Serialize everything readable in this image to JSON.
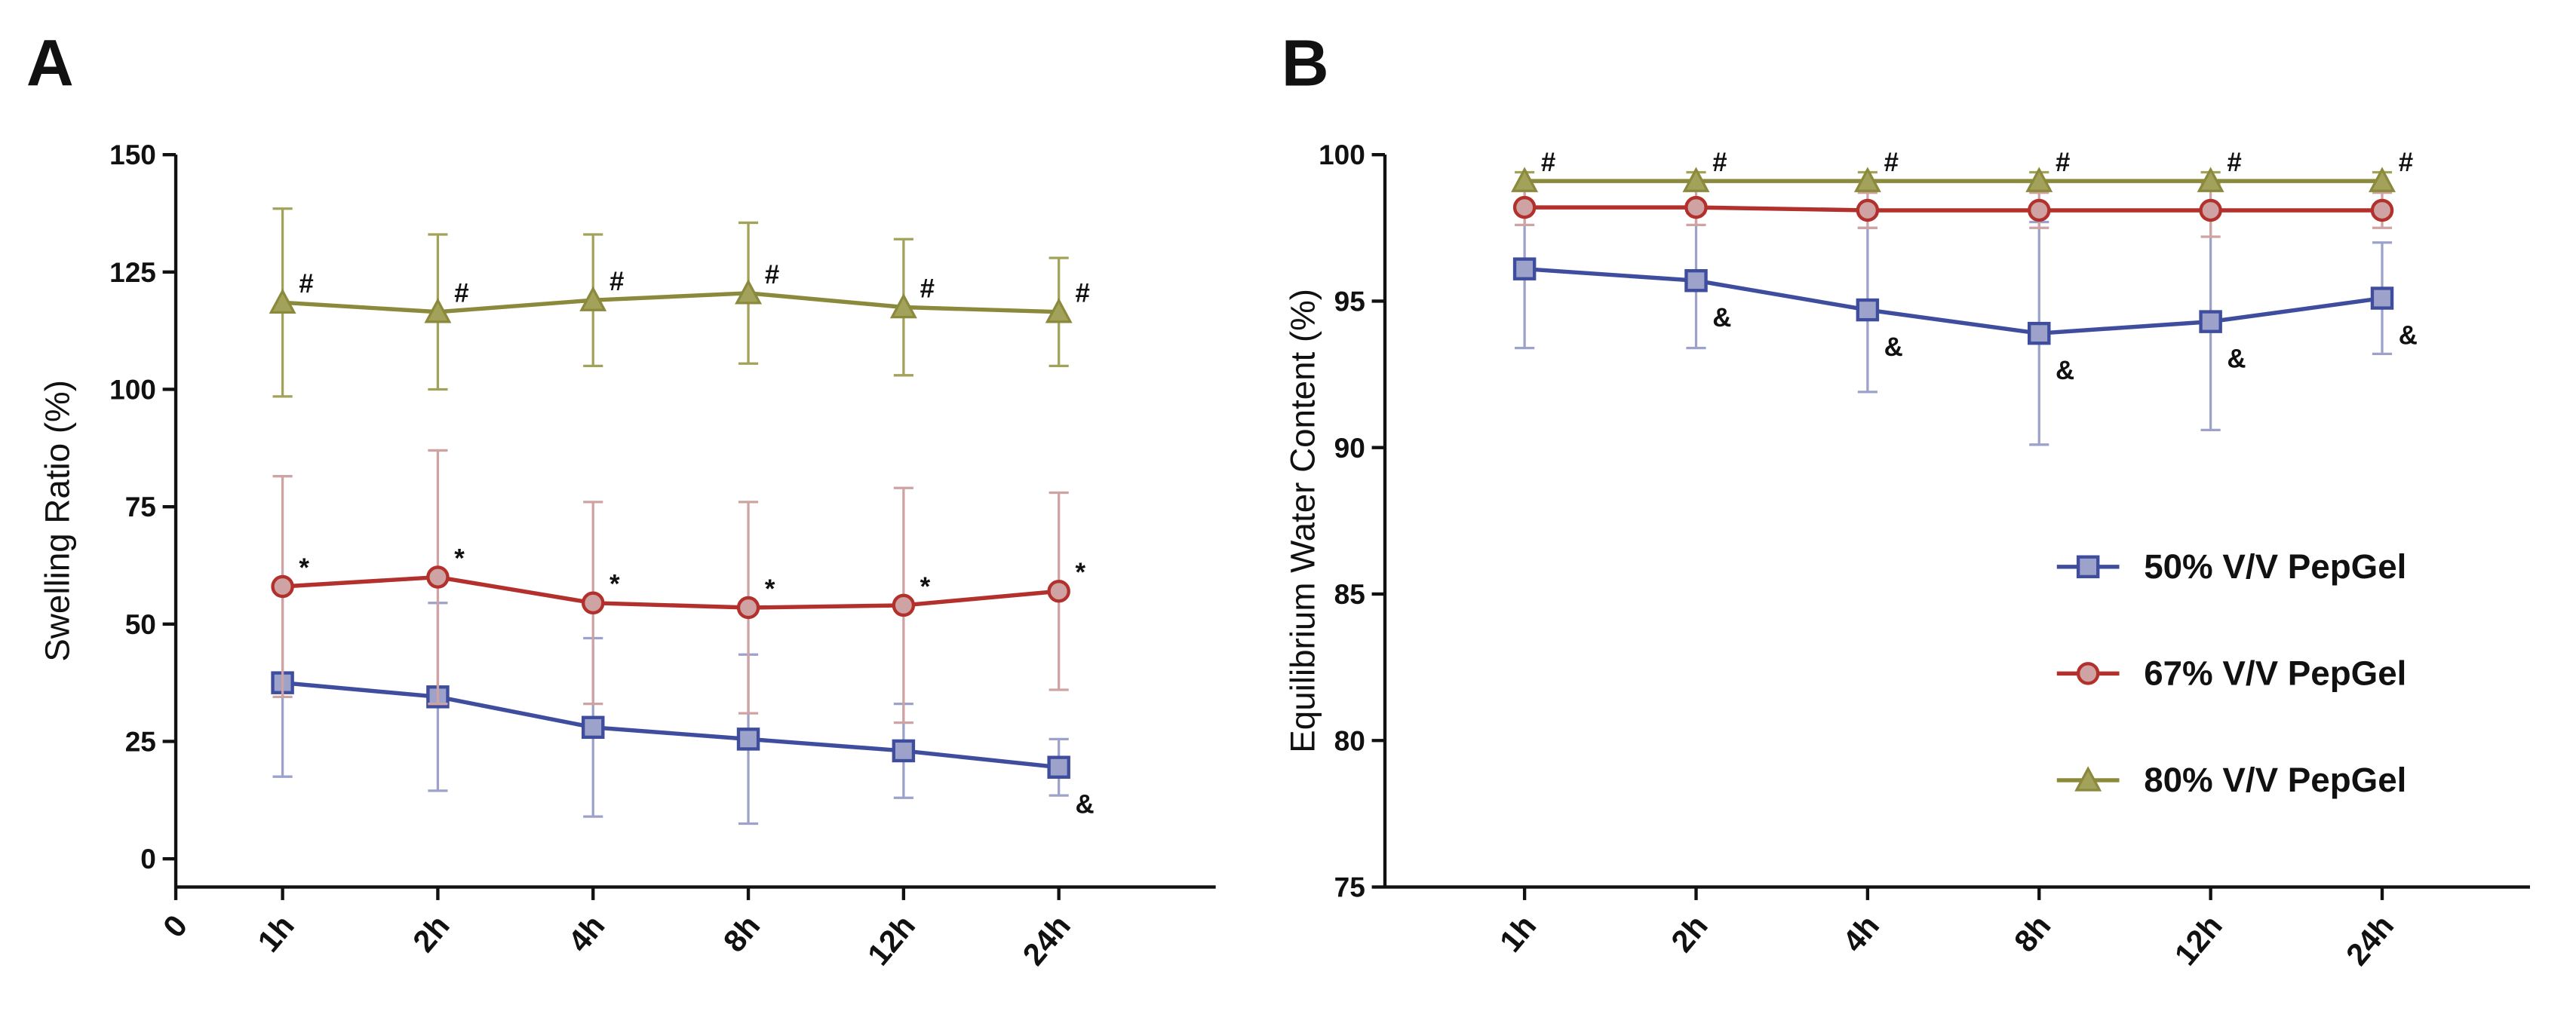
{
  "chart_data": [
    {
      "label": "A",
      "type": "line",
      "ylabel": "Swelling  Ratio (%)",
      "categories": [
        "0",
        "1h",
        "2h",
        "4h",
        "8h",
        "12h",
        "24h"
      ],
      "ylim": [
        -6,
        150
      ],
      "yticks": [
        0,
        25,
        50,
        75,
        100,
        125,
        150
      ],
      "series": [
        {
          "color": "#3f4d9e",
          "marker": "square",
          "values": [
            null,
            37.5,
            34.5,
            28,
            25.5,
            23,
            19.5
          ],
          "errors": [
            null,
            20,
            20,
            19,
            18,
            10,
            6
          ],
          "annotations": [
            null,
            null,
            null,
            null,
            null,
            null,
            "&"
          ]
        },
        {
          "color": "#b3312c",
          "marker": "circle",
          "values": [
            null,
            58,
            60,
            54.5,
            53.5,
            54,
            57
          ],
          "errors": [
            null,
            23.5,
            27,
            21.5,
            22.5,
            25,
            21
          ],
          "annotations": [
            null,
            "*",
            "*",
            "*",
            "*",
            "*",
            "*"
          ]
        },
        {
          "color": "#8b8a3c",
          "marker": "triangle",
          "values": [
            null,
            118.5,
            116.5,
            119,
            120.5,
            117.5,
            116.5
          ],
          "errors": [
            null,
            20,
            16.5,
            14,
            15,
            14.5,
            11.5
          ],
          "annotations": [
            null,
            "#",
            "#",
            "#",
            "#",
            "#",
            "#"
          ]
        }
      ]
    },
    {
      "label": "B",
      "type": "line",
      "ylabel": "Equilibrium Water Content (%)",
      "categories": [
        "1h",
        "2h",
        "4h",
        "8h",
        "12h",
        "24h"
      ],
      "ylim": [
        75,
        100
      ],
      "yticks": [
        75,
        80,
        85,
        90,
        95,
        100
      ],
      "legend": "right",
      "series": [
        {
          "name": "50% V/V PepGel",
          "color": "#3f4d9e",
          "marker": "square",
          "values": [
            96.1,
            95.7,
            94.7,
            93.9,
            94.3,
            95.1
          ],
          "errors": [
            2.7,
            2.3,
            2.8,
            3.8,
            3.7,
            1.9
          ],
          "annotations": [
            null,
            "&",
            "&",
            "&",
            "&",
            "&"
          ]
        },
        {
          "name": "67% V/V PepGel",
          "color": "#b3312c",
          "marker": "circle",
          "values": [
            98.2,
            98.2,
            98.1,
            98.1,
            98.1,
            98.1
          ],
          "errors": [
            0.6,
            0.6,
            0.6,
            0.6,
            0.9,
            0.6
          ],
          "annotations": [
            null,
            null,
            null,
            null,
            null,
            null
          ]
        },
        {
          "name": "80% V/V PepGel",
          "color": "#8b8a3c",
          "marker": "triangle",
          "values": [
            99.1,
            99.1,
            99.1,
            99.1,
            99.1,
            99.1
          ],
          "errors": [
            0.3,
            0.3,
            0.3,
            0.3,
            0.3,
            0.3
          ],
          "annotations": [
            "#",
            "#",
            "#",
            "#",
            "#",
            "#"
          ]
        }
      ]
    }
  ]
}
